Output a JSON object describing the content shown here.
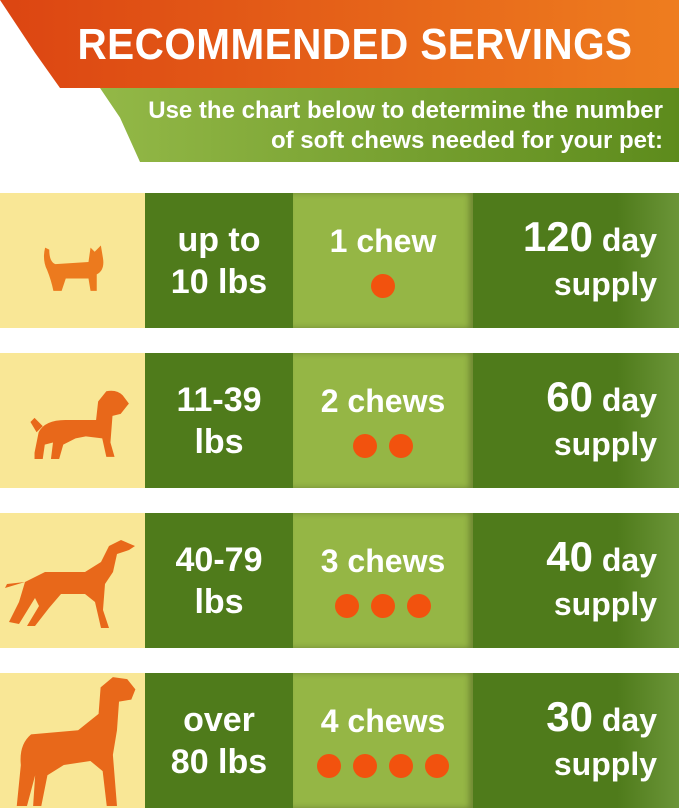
{
  "title": "RECOMMENDED SERVINGS",
  "subtitle_line1": "Use the chart below to determine the number",
  "subtitle_line2": "of soft chews needed for your pet:",
  "colors": {
    "accent": "#e2520f",
    "dark_green": "#4f7b1b",
    "light_green": "#95b645",
    "cream": "#f9e796"
  },
  "rows": [
    {
      "icon": "small-dog-icon",
      "weight1": "up to",
      "weight2": "10 lbs",
      "chews": "1 chew",
      "chew_count": 1,
      "days": "120",
      "day": "day",
      "supply": "supply"
    },
    {
      "icon": "terrier-icon",
      "weight1": "11-39",
      "weight2": "lbs",
      "chews": "2 chews",
      "chew_count": 2,
      "days": "60",
      "day": "day",
      "supply": "supply"
    },
    {
      "icon": "pointer-dog-icon",
      "weight1": "40-79",
      "weight2": "lbs",
      "chews": "3 chews",
      "chew_count": 3,
      "days": "40",
      "day": "day",
      "supply": "supply"
    },
    {
      "icon": "great-dane-icon",
      "weight1": "over",
      "weight2": "80 lbs",
      "chews": "4 chews",
      "chew_count": 4,
      "days": "30",
      "day": "day",
      "supply": "supply"
    }
  ]
}
